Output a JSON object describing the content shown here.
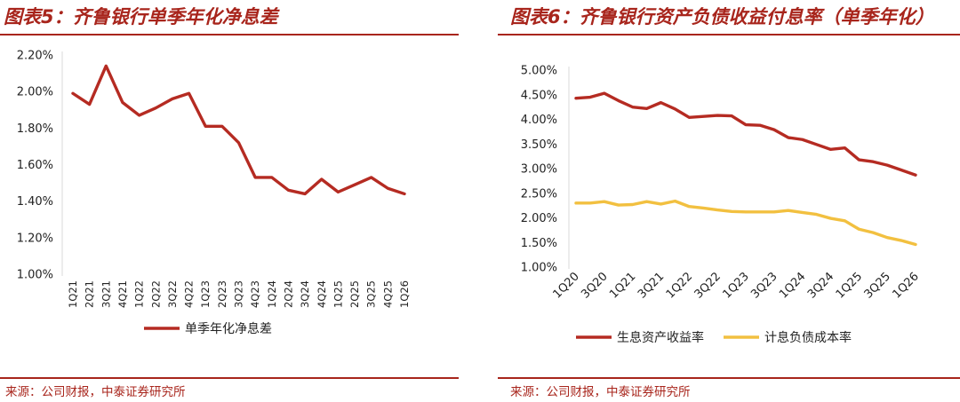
{
  "charts": [
    {
      "title": "图表5：齐鲁银行单季年化净息差",
      "source": "来源：公司财报，中泰证券研究所"
    },
    {
      "title": "图表6：齐鲁银行资产负债收益付息率（单季年化）",
      "source": "来源：公司财报，中泰证券研究所"
    }
  ],
  "chart_data": [
    {
      "type": "line",
      "title": "图表5：齐鲁银行单季年化净息差",
      "categories": [
        "1Q21",
        "2Q21",
        "3Q21",
        "4Q21",
        "1Q22",
        "2Q22",
        "3Q22",
        "4Q22",
        "1Q23",
        "2Q23",
        "3Q23",
        "4Q23",
        "1Q24",
        "2Q24",
        "3Q24",
        "4Q24",
        "1Q25",
        "2Q25",
        "3Q25",
        "4Q25",
        "1Q26"
      ],
      "y_tick_labels": [
        "2.20%",
        "2.00%",
        "1.80%",
        "1.60%",
        "1.40%",
        "1.20%",
        "1.00%"
      ],
      "ylim": [
        1.0,
        2.2
      ],
      "y_unit": "%",
      "grid": false,
      "legend_position": "bottom",
      "series": [
        {
          "name": "单季年化净息差",
          "color": "#b52b22",
          "values": [
            1.99,
            1.93,
            2.14,
            1.94,
            1.87,
            1.91,
            1.96,
            1.99,
            1.81,
            1.81,
            1.72,
            1.53,
            1.53,
            1.46,
            1.44,
            1.52,
            1.45,
            1.49,
            1.53,
            1.47,
            1.44
          ]
        }
      ]
    },
    {
      "type": "line",
      "title": "图表6：齐鲁银行资产负债收益付息率（单季年化）",
      "categories": [
        "1Q20",
        "2Q20",
        "3Q20",
        "4Q20",
        "1Q21",
        "2Q21",
        "3Q21",
        "4Q21",
        "1Q22",
        "2Q22",
        "3Q22",
        "4Q22",
        "1Q23",
        "2Q23",
        "3Q23",
        "4Q23",
        "1Q24",
        "2Q24",
        "3Q24",
        "4Q24",
        "1Q25",
        "2Q25",
        "3Q25",
        "4Q25",
        "1Q26"
      ],
      "x_tick_labels": [
        "1Q20",
        "3Q20",
        "1Q21",
        "3Q21",
        "1Q22",
        "3Q22",
        "1Q23",
        "3Q23",
        "1Q24",
        "3Q24",
        "1Q25",
        "3Q25",
        "1Q26"
      ],
      "y_tick_labels": [
        "5.00%",
        "4.50%",
        "4.00%",
        "3.50%",
        "3.00%",
        "2.50%",
        "2.00%",
        "1.50%",
        "1.00%"
      ],
      "ylim": [
        1.0,
        5.0
      ],
      "y_unit": "%",
      "grid": false,
      "legend_position": "bottom",
      "series": [
        {
          "name": "生息资产收益率",
          "color": "#b52b22",
          "values": [
            4.43,
            4.45,
            4.53,
            4.38,
            4.25,
            4.22,
            4.34,
            4.21,
            4.04,
            4.06,
            4.08,
            4.07,
            3.89,
            3.88,
            3.79,
            3.63,
            3.59,
            3.49,
            3.39,
            3.42,
            3.18,
            3.14,
            3.07,
            2.97,
            2.87
          ]
        },
        {
          "name": "计息负债成本率",
          "color": "#f2c040",
          "values": [
            2.3,
            2.3,
            2.33,
            2.26,
            2.27,
            2.33,
            2.28,
            2.34,
            2.23,
            2.2,
            2.16,
            2.13,
            2.12,
            2.12,
            2.12,
            2.15,
            2.11,
            2.07,
            1.99,
            1.94,
            1.77,
            1.7,
            1.6,
            1.54,
            1.46
          ]
        }
      ]
    }
  ]
}
